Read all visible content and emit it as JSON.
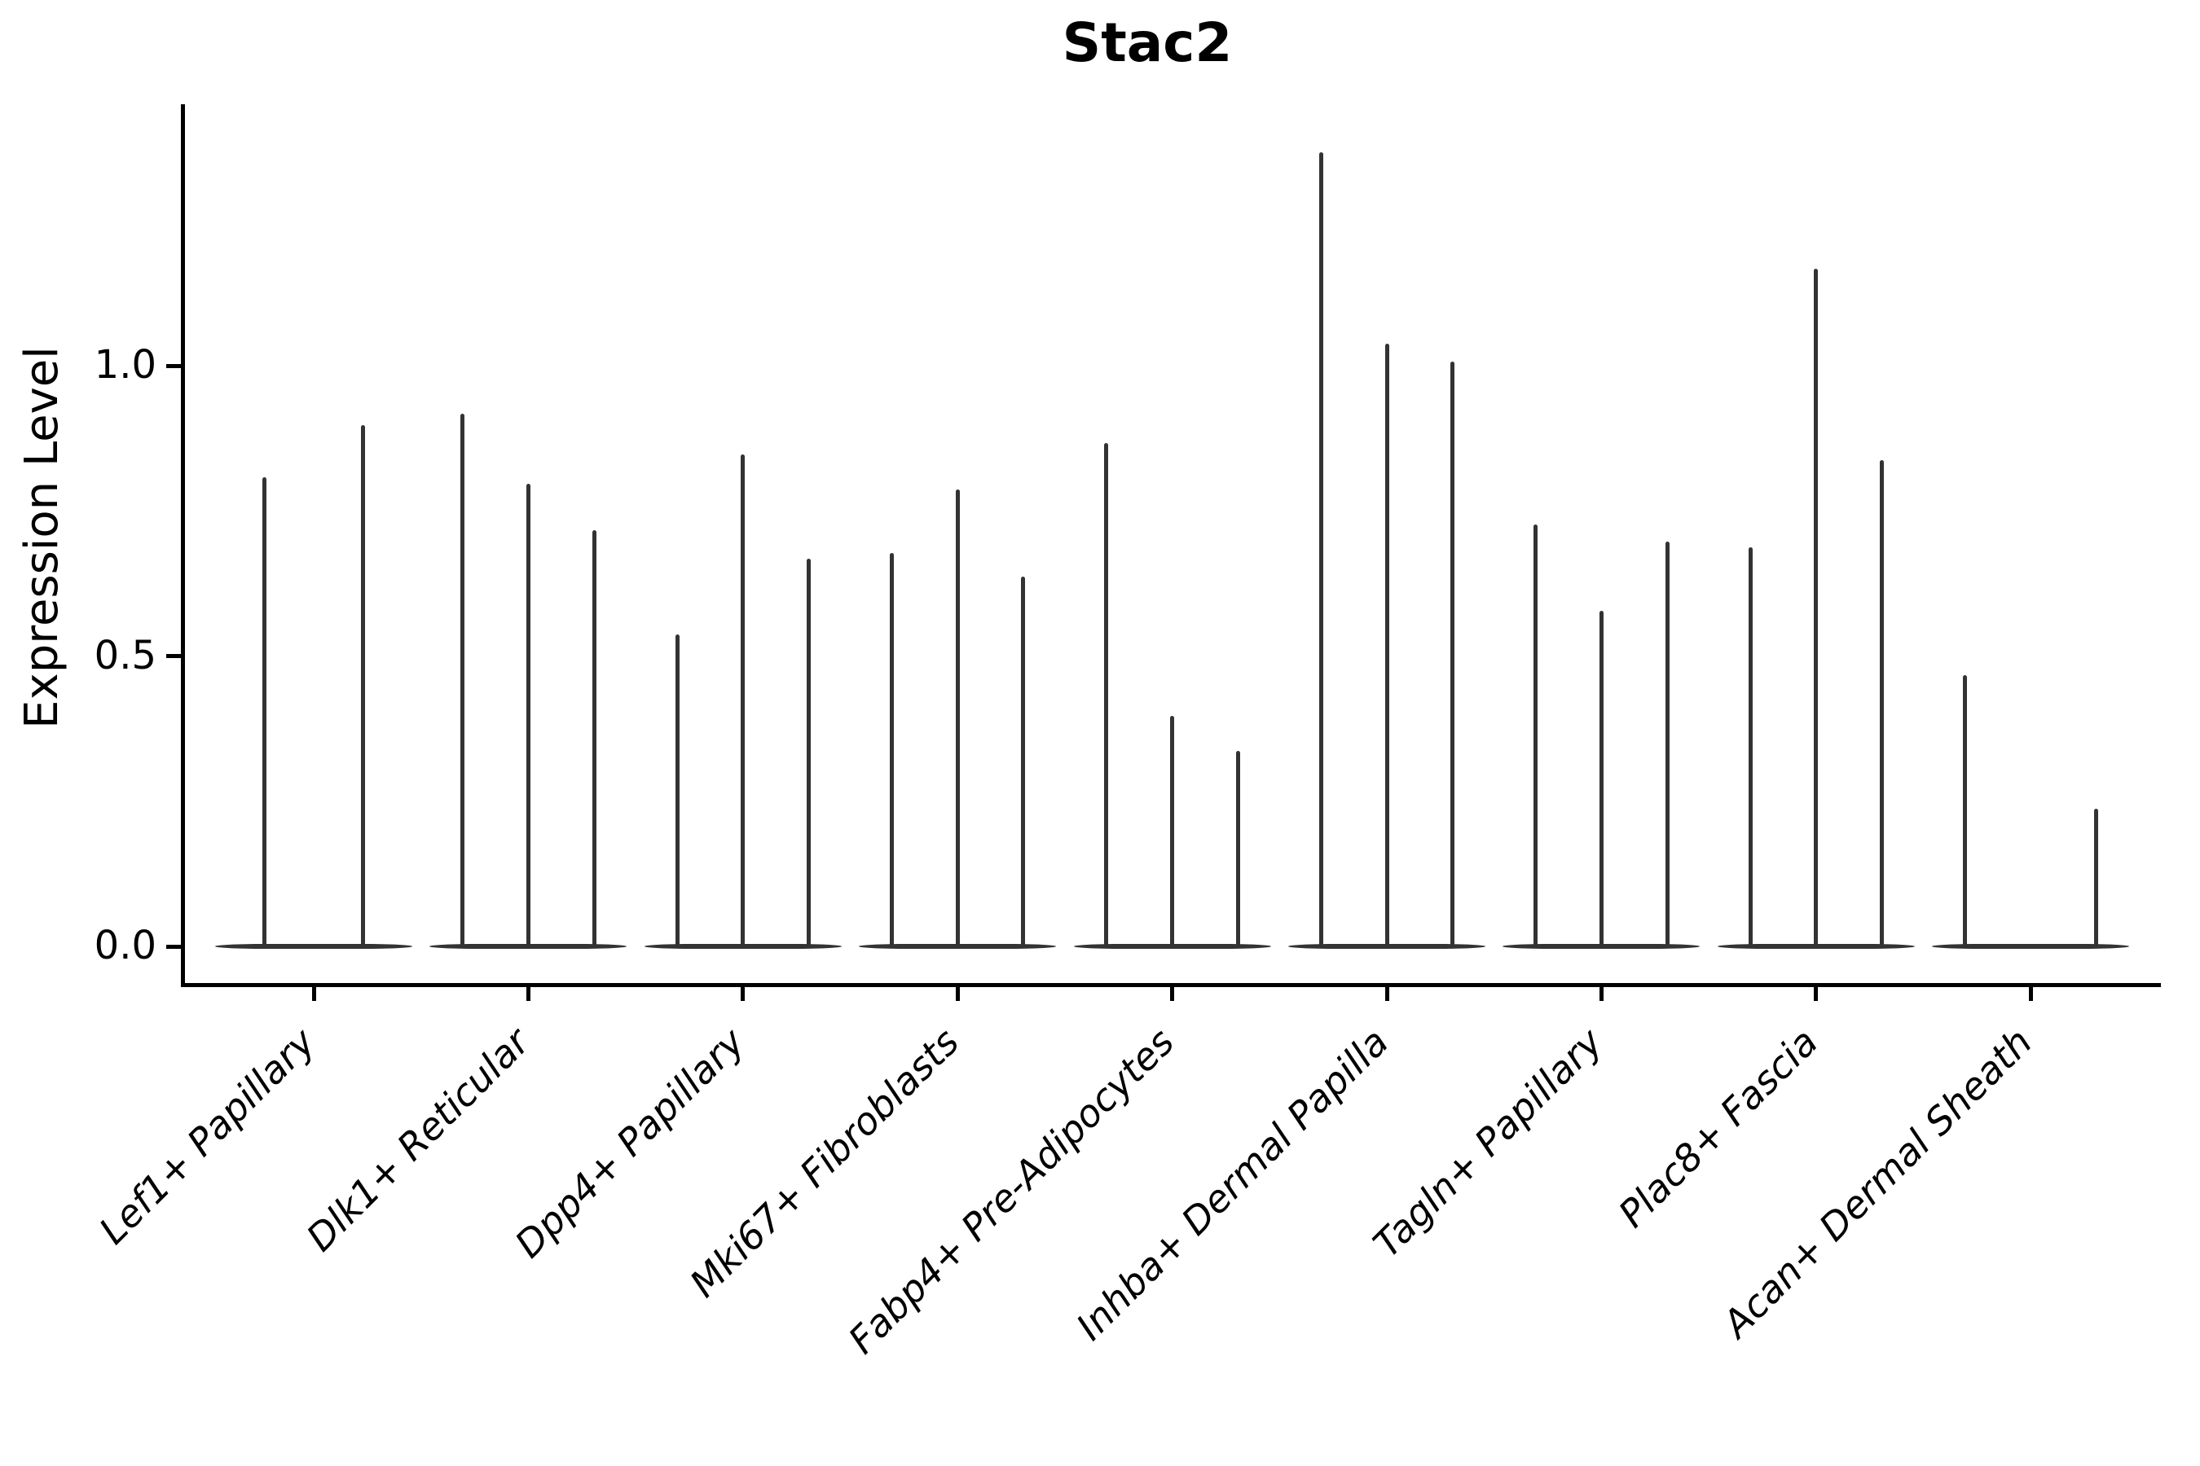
{
  "chart_data": {
    "type": "violin",
    "title": "Stac2",
    "ylabel": "Expression Level",
    "xlabel": "",
    "yticks": [
      "0.0",
      "0.5",
      "1.0"
    ],
    "ylim": [
      -0.07,
      1.45
    ],
    "grid": false,
    "legend": "none",
    "categories": [
      "Lef1+ Papillary",
      "Dlk1+ Reticular",
      "Dpp4+ Papillary",
      "Mki67+ Fibroblasts",
      "Fabp4+ Pre-Adipocytes",
      "Inhba+ Dermal Papilla",
      "Tagln+ Papillary",
      "Plac8+ Fascia",
      "Acan+ Dermal Sheath"
    ],
    "groups": [
      {
        "label": "Lef1+ Papillary",
        "violin_max_values": [
          0.81,
          0.9
        ]
      },
      {
        "label": "Dlk1+ Reticular",
        "violin_max_values": [
          0.92,
          0.8,
          0.72
        ]
      },
      {
        "label": "Dpp4+ Papillary",
        "violin_max_values": [
          0.54,
          0.85,
          0.67
        ]
      },
      {
        "label": "Mki67+ Fibroblasts",
        "violin_max_values": [
          0.68,
          0.79,
          0.64
        ]
      },
      {
        "label": "Fabp4+ Pre-Adipocytes",
        "violin_max_values": [
          0.87,
          0.4,
          0.34
        ]
      },
      {
        "label": "Inhba+ Dermal Papilla",
        "violin_max_values": [
          1.37,
          1.04,
          1.01
        ]
      },
      {
        "label": "Tagln+ Papillary",
        "violin_max_values": [
          0.73,
          0.58,
          0.7
        ]
      },
      {
        "label": "Plac8+ Fascia",
        "violin_max_values": [
          0.69,
          1.17,
          0.84
        ]
      },
      {
        "label": "Acan+ Dermal Sheath",
        "violin_max_values": [
          0.47,
          0.0,
          0.24
        ]
      }
    ],
    "colors": {
      "violin": "#333333",
      "axis": "#000000",
      "text": "#000000"
    }
  }
}
